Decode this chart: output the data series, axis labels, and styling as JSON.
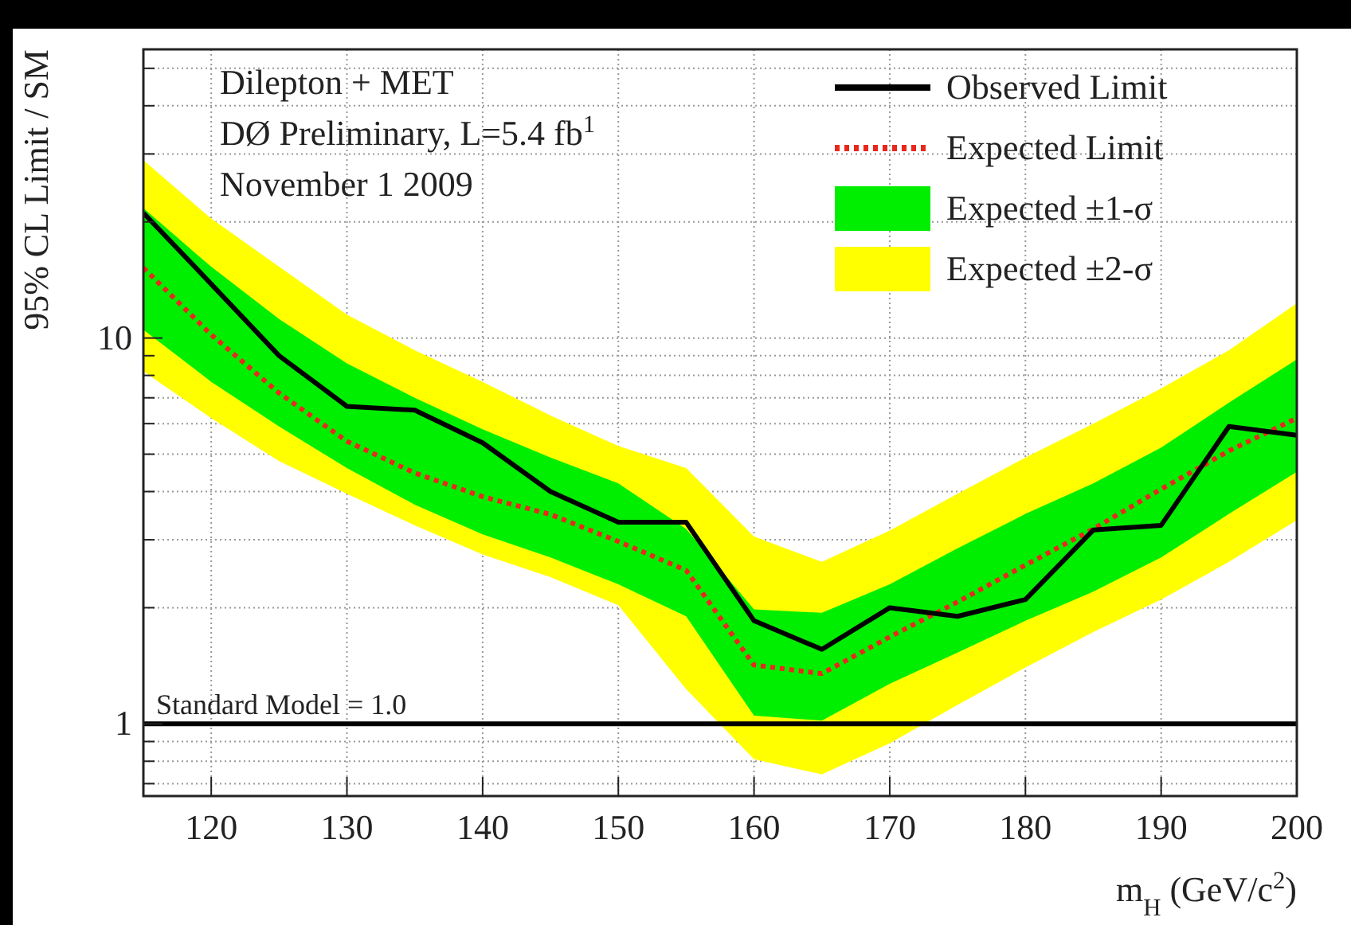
{
  "chart_data": {
    "type": "line",
    "xlabel": "m$_{H}$ (GeV/c$^{2}$)",
    "ylabel": "95% CL Limit / SM",
    "annotations": [
      "Dilepton + MET",
      "DØ Preliminary, L=5.4 fb$^{1}$",
      "November 1 2009"
    ],
    "x": [
      115,
      120,
      125,
      130,
      135,
      140,
      145,
      150,
      155,
      160,
      165,
      170,
      175,
      180,
      185,
      190,
      195,
      200
    ],
    "series": [
      {
        "name": "Expected ±2-σ",
        "color": "#ffff00",
        "values": [
          null,
          null,
          null,
          null,
          null,
          null,
          null,
          null,
          null,
          null,
          null,
          null,
          null,
          null,
          null,
          null,
          null,
          null
        ],
        "lower": [
          8.2,
          6.2,
          4.8,
          3.95,
          3.27,
          2.75,
          2.4,
          2.03,
          1.23,
          0.81,
          0.74,
          0.89,
          1.12,
          1.4,
          1.73,
          2.1,
          2.63,
          3.37
        ],
        "upper": [
          28.9,
          20.4,
          15.3,
          11.5,
          9.3,
          7.7,
          6.3,
          5.25,
          4.6,
          3.06,
          2.63,
          3.17,
          3.95,
          4.9,
          6.0,
          7.4,
          9.3,
          12.3
        ]
      },
      {
        "name": "Expected ±1-σ",
        "color": "#00ee00",
        "values": [
          null,
          null,
          null,
          null,
          null,
          null,
          null,
          null,
          null,
          null,
          null,
          null,
          null,
          null,
          null,
          null,
          null,
          null
        ],
        "lower": [
          10.5,
          7.7,
          5.9,
          4.6,
          3.7,
          3.1,
          2.7,
          2.3,
          1.9,
          1.05,
          1.02,
          1.27,
          1.53,
          1.85,
          2.2,
          2.7,
          3.5,
          4.5
        ],
        "upper": [
          21.7,
          15.3,
          11.2,
          8.6,
          7.0,
          5.8,
          4.9,
          4.2,
          3.2,
          1.98,
          1.94,
          2.3,
          2.85,
          3.5,
          4.2,
          5.2,
          6.8,
          8.8
        ]
      },
      {
        "name": "Expected Limit",
        "line_style": "dotted",
        "color": "#e8281e",
        "values": [
          15.2,
          10.2,
          7.2,
          5.4,
          4.47,
          3.88,
          3.49,
          2.97,
          2.5,
          1.42,
          1.35,
          1.68,
          2.07,
          2.58,
          3.2,
          4.06,
          5.1,
          6.2
        ]
      },
      {
        "name": "Observed Limit",
        "line_style": "solid",
        "color": "#000000",
        "values": [
          21.1,
          13.8,
          9.0,
          6.65,
          6.5,
          5.35,
          4.0,
          3.33,
          3.33,
          1.85,
          1.56,
          2.0,
          1.9,
          2.1,
          3.18,
          3.27,
          5.9,
          5.6
        ]
      }
    ],
    "xlim": [
      115,
      200
    ],
    "xticks": [
      120,
      130,
      140,
      150,
      160,
      170,
      180,
      190,
      200
    ],
    "ylim": [
      0.65,
      56
    ],
    "log": true,
    "yticks": [
      {
        "value": 0.7,
        "label": null
      },
      {
        "value": 0.8,
        "label": null
      },
      {
        "value": 0.9,
        "label": null
      },
      1,
      {
        "value": 2,
        "label": null
      },
      {
        "value": 3,
        "label": null
      },
      {
        "value": 4,
        "label": null
      },
      {
        "value": 5,
        "label": null
      },
      {
        "value": 6,
        "label": null
      },
      {
        "value": 7,
        "label": null
      },
      {
        "value": 8,
        "label": null
      },
      {
        "value": 9,
        "label": null
      },
      10,
      {
        "value": 20,
        "label": null
      },
      {
        "value": 30,
        "label": null
      },
      {
        "value": 40,
        "label": null
      },
      {
        "value": 50,
        "label": null
      }
    ],
    "ref_lines": [
      {
        "axis": "y",
        "value": 1,
        "label": "Standard Model = 1.0",
        "color": "#000000"
      }
    ],
    "grid": true,
    "legend": "top right"
  }
}
